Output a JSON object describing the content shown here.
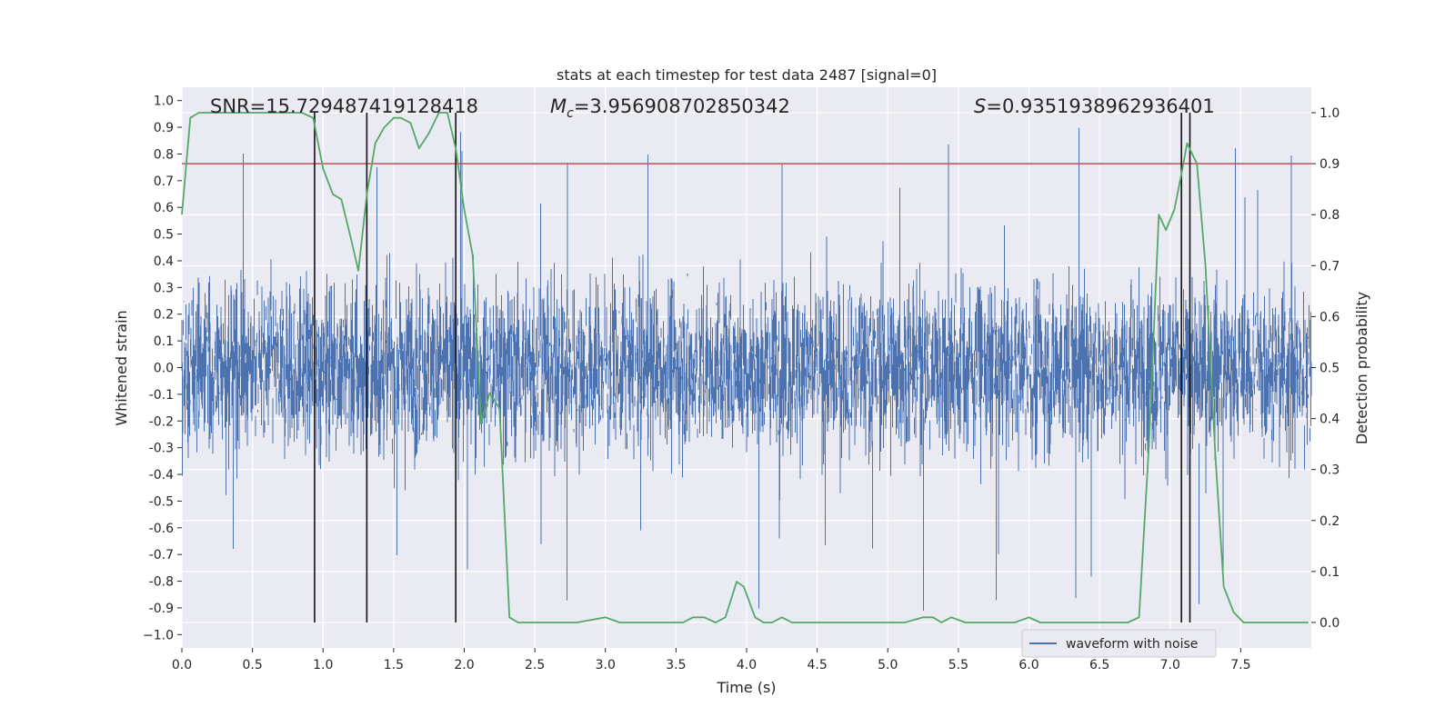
{
  "chart_data": {
    "type": "line",
    "title": "stats at each timestep for test data 2487 [signal=0]",
    "xlabel": "Time (s)",
    "ylabel": "Whitened strain",
    "y2label": "Detection probability",
    "xlim": [
      0.0,
      8.0
    ],
    "ylim": [
      -1.05,
      1.05
    ],
    "y2lim": [
      -0.05,
      1.05
    ],
    "x_ticks": [
      0.0,
      0.5,
      1.0,
      1.5,
      2.0,
      2.5,
      3.0,
      3.5,
      4.0,
      4.5,
      5.0,
      5.5,
      6.0,
      6.5,
      7.0,
      7.5
    ],
    "x_tick_labels": [
      "0.0",
      "0.5",
      "1.0",
      "1.5",
      "2.0",
      "2.5",
      "3.0",
      "3.5",
      "4.0",
      "4.5",
      "5.0",
      "5.5",
      "6.0",
      "6.5",
      "7.0",
      "7.5"
    ],
    "y_ticks": [
      1.0,
      0.9,
      0.8,
      0.7,
      0.6,
      0.5,
      0.4,
      0.3,
      0.2,
      0.1,
      0.0,
      -0.1,
      -0.2,
      -0.3,
      -0.4,
      -0.5,
      -0.6,
      -0.7,
      -0.8,
      -0.9,
      -1.0
    ],
    "y_tick_labels": [
      "1.0",
      "0.9",
      "0.8",
      "0.7",
      "0.6",
      "0.5",
      "0.4",
      "0.3",
      "0.2",
      "0.1",
      "0.0",
      "-0.1",
      "-0.2",
      "-0.3",
      "-0.4",
      "-0.5",
      "-0.6",
      "-0.7",
      "-0.8",
      "-0.9",
      "−1.0"
    ],
    "y2_ticks": [
      1.0,
      0.9,
      0.8,
      0.7,
      0.6,
      0.5,
      0.4,
      0.3,
      0.2,
      0.1,
      0.0
    ],
    "y2_tick_labels": [
      "1.0",
      "0.9",
      "0.8",
      "0.7",
      "0.6",
      "0.5",
      "0.4",
      "0.3",
      "0.2",
      "0.1",
      "0.0"
    ],
    "grid": true,
    "legend": {
      "placement": "lower-right",
      "entries": [
        "waveform with noise"
      ]
    },
    "annotations": {
      "snr": "SNR=15.729487419128418",
      "mc_symbol": "M",
      "mc_sub": "c",
      "mc_value": "=3.956908702850342",
      "s_symbol": "S",
      "s_value": "=0.9351938962936401"
    },
    "threshold": {
      "value": 0.9,
      "axis": "y2",
      "color": "#c44e52"
    },
    "markers_x": [
      0.94,
      1.31,
      1.94,
      7.08,
      7.14
    ],
    "waveform": {
      "name": "waveform with noise",
      "color": "#4c72b0",
      "x_range": [
        0.0,
        8.0
      ],
      "typical_amplitude": 0.4,
      "max_amplitude": 0.93
    },
    "series": [
      {
        "name": "Detection probability",
        "color": "#55a868",
        "axis": "y2",
        "x": [
          0.0,
          0.06,
          0.12,
          0.2,
          0.3,
          0.5,
          0.7,
          0.85,
          0.93,
          1.0,
          1.07,
          1.13,
          1.2,
          1.25,
          1.31,
          1.37,
          1.43,
          1.5,
          1.55,
          1.62,
          1.68,
          1.75,
          1.82,
          1.88,
          1.94,
          2.0,
          2.06,
          2.12,
          2.18,
          2.25,
          2.32,
          2.38,
          2.45,
          2.6,
          2.8,
          3.0,
          3.1,
          3.2,
          3.4,
          3.55,
          3.62,
          3.7,
          3.78,
          3.85,
          3.93,
          3.98,
          4.06,
          4.12,
          4.18,
          4.25,
          4.32,
          4.45,
          4.6,
          4.8,
          5.0,
          5.12,
          5.25,
          5.32,
          5.38,
          5.45,
          5.55,
          5.7,
          5.9,
          6.0,
          6.08,
          6.15,
          6.3,
          6.5,
          6.7,
          6.78,
          6.85,
          6.92,
          6.97,
          7.03,
          7.08,
          7.12,
          7.19,
          7.25,
          7.32,
          7.38,
          7.45,
          7.52,
          7.6,
          7.75,
          7.9,
          7.98
        ],
        "y": [
          0.8,
          0.99,
          1.0,
          1.0,
          1.0,
          1.0,
          1.0,
          1.0,
          0.99,
          0.89,
          0.84,
          0.83,
          0.75,
          0.69,
          0.84,
          0.94,
          0.97,
          0.99,
          0.99,
          0.98,
          0.93,
          0.96,
          1.0,
          1.0,
          0.93,
          0.81,
          0.72,
          0.39,
          0.45,
          0.42,
          0.01,
          0.0,
          0.0,
          0.0,
          0.0,
          0.01,
          0.0,
          0.0,
          0.0,
          0.0,
          0.01,
          0.01,
          0.0,
          0.01,
          0.08,
          0.07,
          0.01,
          0.0,
          0.0,
          0.01,
          0.0,
          0.0,
          0.0,
          0.0,
          0.0,
          0.0,
          0.01,
          0.01,
          0.0,
          0.01,
          0.0,
          0.0,
          0.0,
          0.01,
          0.0,
          0.0,
          0.0,
          0.0,
          0.0,
          0.01,
          0.35,
          0.8,
          0.77,
          0.81,
          0.88,
          0.94,
          0.9,
          0.7,
          0.33,
          0.07,
          0.02,
          0.0,
          0.0,
          0.0,
          0.0,
          0.0
        ]
      }
    ]
  }
}
